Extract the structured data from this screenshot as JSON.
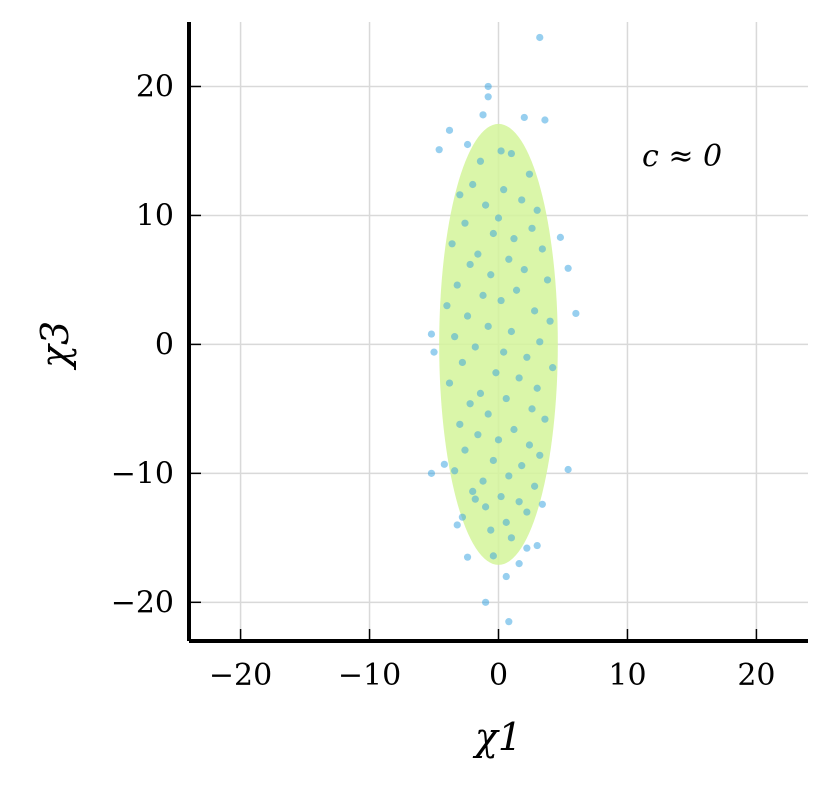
{
  "chart_data": {
    "type": "scatter",
    "title": "",
    "xlabel": "χ1",
    "ylabel": "χ3",
    "xlim": [
      -24,
      24
    ],
    "ylim": [
      -23,
      25
    ],
    "grid": true,
    "xticks": [
      -20,
      -10,
      0,
      10,
      20
    ],
    "yticks": [
      -20,
      -10,
      0,
      10,
      20
    ],
    "xtick_labels": [
      "−20",
      "−10",
      "0",
      "10",
      "20"
    ],
    "ytick_labels": [
      "−20",
      "−10",
      "0",
      "10",
      "20"
    ],
    "annotation": "c ≈ 0",
    "ellipse": {
      "center": [
        0,
        0
      ],
      "semi_axes": [
        4.6,
        17.1
      ],
      "color": "#d4f59a"
    },
    "point_color": "#2f9fe0",
    "series": [
      {
        "points": [
          [
            3.2,
            23.8
          ],
          [
            -0.8,
            20.0
          ],
          [
            -1.2,
            17.8
          ],
          [
            -0.8,
            19.2
          ],
          [
            2.0,
            17.6
          ],
          [
            3.6,
            17.4
          ],
          [
            -3.8,
            16.6
          ],
          [
            -4.6,
            15.1
          ],
          [
            -2.4,
            15.5
          ],
          [
            5.4,
            5.9
          ],
          [
            6.0,
            2.4
          ],
          [
            4.8,
            8.3
          ],
          [
            -5.2,
            0.8
          ],
          [
            -5.0,
            -0.6
          ],
          [
            -5.2,
            -10.0
          ],
          [
            -4.2,
            -9.3
          ],
          [
            5.4,
            -9.7
          ],
          [
            -3.2,
            -14.0
          ],
          [
            -2.4,
            -16.5
          ],
          [
            -1.0,
            -20.0
          ],
          [
            0.8,
            -21.5
          ],
          [
            3.0,
            -15.6
          ],
          [
            2.2,
            -15.8
          ],
          [
            1.6,
            -17.0
          ],
          [
            0.6,
            -18.0
          ],
          [
            -0.4,
            -16.4
          ],
          [
            0.2,
            15.0
          ],
          [
            1.0,
            14.8
          ],
          [
            -1.4,
            14.2
          ],
          [
            2.4,
            13.2
          ],
          [
            -2.0,
            12.4
          ],
          [
            0.4,
            12.0
          ],
          [
            -3.0,
            11.6
          ],
          [
            1.8,
            11.2
          ],
          [
            3.0,
            10.4
          ],
          [
            -1.0,
            10.8
          ],
          [
            0.0,
            9.8
          ],
          [
            -2.6,
            9.4
          ],
          [
            2.6,
            9.0
          ],
          [
            -0.4,
            8.6
          ],
          [
            1.2,
            8.2
          ],
          [
            -3.6,
            7.8
          ],
          [
            3.4,
            7.4
          ],
          [
            -1.6,
            7.0
          ],
          [
            0.8,
            6.6
          ],
          [
            -2.2,
            6.2
          ],
          [
            2.0,
            5.8
          ],
          [
            -0.6,
            5.4
          ],
          [
            3.8,
            5.0
          ],
          [
            -3.2,
            4.6
          ],
          [
            1.4,
            4.2
          ],
          [
            -1.2,
            3.8
          ],
          [
            0.2,
            3.4
          ],
          [
            -4.0,
            3.0
          ],
          [
            2.8,
            2.6
          ],
          [
            -2.4,
            2.2
          ],
          [
            4.0,
            1.8
          ],
          [
            -0.8,
            1.4
          ],
          [
            1.0,
            1.0
          ],
          [
            -3.4,
            0.6
          ],
          [
            3.2,
            0.2
          ],
          [
            -1.8,
            -0.2
          ],
          [
            0.4,
            -0.6
          ],
          [
            2.2,
            -1.0
          ],
          [
            -2.8,
            -1.4
          ],
          [
            4.2,
            -1.8
          ],
          [
            -0.2,
            -2.2
          ],
          [
            1.6,
            -2.6
          ],
          [
            -3.8,
            -3.0
          ],
          [
            3.0,
            -3.4
          ],
          [
            -1.4,
            -3.8
          ],
          [
            0.6,
            -4.2
          ],
          [
            -2.2,
            -4.6
          ],
          [
            2.6,
            -5.0
          ],
          [
            -0.8,
            -5.4
          ],
          [
            3.6,
            -5.8
          ],
          [
            -3.0,
            -6.2
          ],
          [
            1.2,
            -6.6
          ],
          [
            -1.6,
            -7.0
          ],
          [
            0.0,
            -7.4
          ],
          [
            2.4,
            -7.8
          ],
          [
            -2.6,
            -8.2
          ],
          [
            3.2,
            -8.6
          ],
          [
            -0.4,
            -9.0
          ],
          [
            1.8,
            -9.4
          ],
          [
            -3.4,
            -9.8
          ],
          [
            0.8,
            -10.2
          ],
          [
            -1.2,
            -10.6
          ],
          [
            2.8,
            -11.0
          ],
          [
            -2.0,
            -11.4
          ],
          [
            0.2,
            -11.8
          ],
          [
            1.6,
            -12.2
          ],
          [
            -1.0,
            -12.6
          ],
          [
            2.2,
            -13.0
          ],
          [
            -2.8,
            -13.4
          ],
          [
            0.6,
            -13.8
          ],
          [
            -0.6,
            -14.4
          ],
          [
            1.0,
            -15.0
          ],
          [
            -1.8,
            -12.0
          ],
          [
            3.4,
            -12.4
          ]
        ]
      }
    ]
  }
}
